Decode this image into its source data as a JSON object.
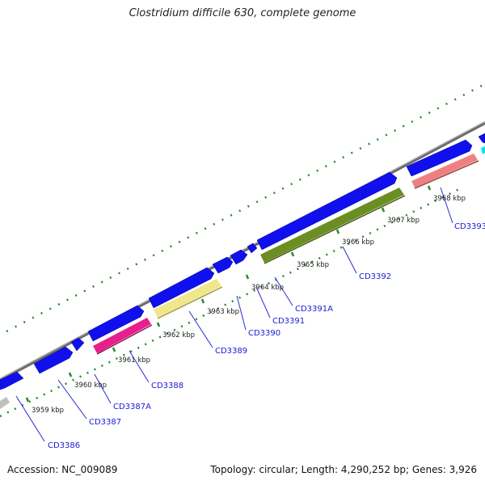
{
  "title": "Clostridium difficile 630, complete genome",
  "footer": {
    "accession": "Accession: NC_009089",
    "summary": "Topology: circular; Length: 4,290,252 bp; Genes: 3,926"
  },
  "colors": {
    "backbone": "#888888",
    "tick": "#2a8a2a",
    "gene_label": "#1a1ad6",
    "leader": "#2a2ad6",
    "forward_gene": "#1010ee",
    "rev_magenta": "#e81e8c",
    "rev_khaki": "#f0e68c",
    "rev_olive": "#6b8e23",
    "rev_salmon": "#f08080",
    "rev_gray": "#c0c0c0",
    "fwd_cyan": "#00e5ee"
  },
  "scale_labels": [
    {
      "text": "3959 kbp"
    },
    {
      "text": "3960 kbp"
    },
    {
      "text": "3961 kbp"
    },
    {
      "text": "3962 kbp"
    },
    {
      "text": "3963 kbp"
    },
    {
      "text": "3964 kbp"
    },
    {
      "text": "3965 kbp"
    },
    {
      "text": "3966 kbp"
    },
    {
      "text": "3967 kbp"
    },
    {
      "text": "3968 kbp"
    }
  ],
  "gene_labels": [
    {
      "text": "CD3386"
    },
    {
      "text": "CD3387"
    },
    {
      "text": "CD3387A"
    },
    {
      "text": "CD3388"
    },
    {
      "text": "CD3389"
    },
    {
      "text": "CD3390"
    },
    {
      "text": "CD3391"
    },
    {
      "text": "CD3391A"
    },
    {
      "text": "CD3392"
    },
    {
      "text": "CD3393"
    }
  ]
}
